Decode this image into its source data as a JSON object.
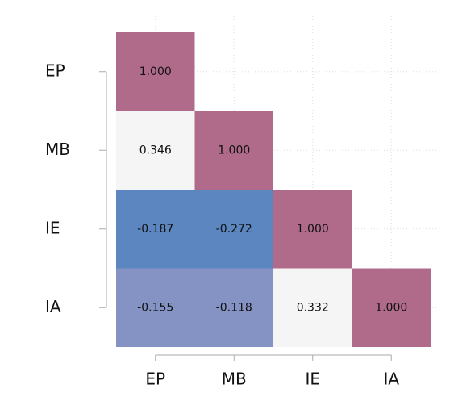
{
  "chart_data": {
    "type": "heatmap",
    "x": [
      "EP",
      "MB",
      "IE",
      "IA"
    ],
    "y": [
      "EP",
      "MB",
      "IE",
      "IA"
    ],
    "values": [
      [
        1,
        null,
        null,
        null
      ],
      [
        0.346,
        1,
        null,
        null
      ],
      [
        -0.187,
        -0.272,
        1,
        null
      ],
      [
        -0.155,
        -0.118,
        0.332,
        1
      ]
    ],
    "value_labels": [
      [
        "1.000",
        null,
        null,
        null
      ],
      [
        "0.346",
        "1.000",
        null,
        null
      ],
      [
        "-0.187",
        "-0.272",
        "1.000",
        null
      ],
      [
        "-0.155",
        "-0.118",
        "0.332",
        "1.000"
      ]
    ],
    "colors": [
      [
        "#b06a8a",
        null,
        null,
        null
      ],
      [
        "#f5f5f5",
        "#b06a8a",
        null,
        null
      ],
      [
        "#5b86c0",
        "#5b86c0",
        "#b06a8a",
        null
      ],
      [
        "#8493c4",
        "#8493c4",
        "#f5f5f5",
        "#b06a8a"
      ]
    ],
    "grid": true
  }
}
